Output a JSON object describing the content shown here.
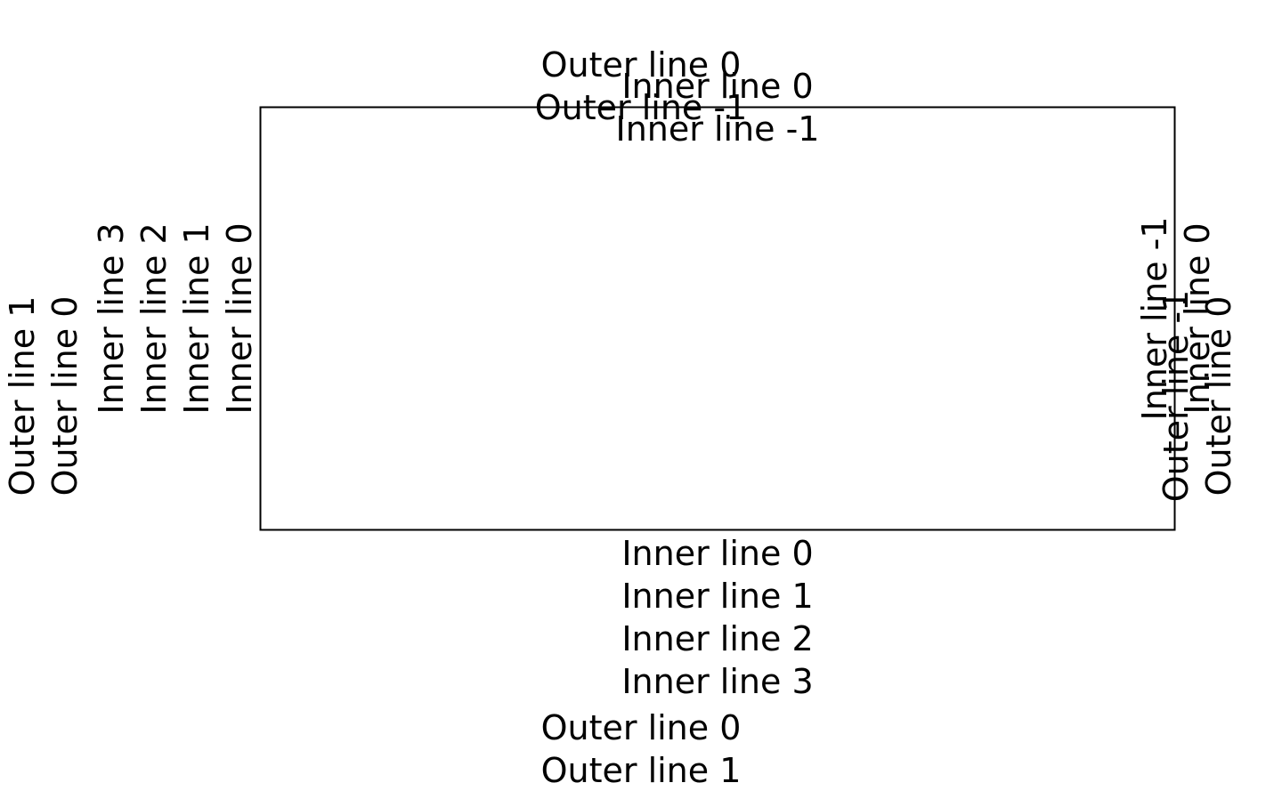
{
  "plot_box": {
    "border_color": "#000000"
  },
  "top": {
    "inner": [
      "Inner line 0",
      "Inner line -1"
    ],
    "outer": [
      "Outer line 0",
      "Outer line -1"
    ]
  },
  "bottom": {
    "inner": [
      "Inner line 0",
      "Inner line 1",
      "Inner line 2",
      "Inner line 3"
    ],
    "outer": [
      "Outer line 0",
      "Outer line 1"
    ]
  },
  "left": {
    "inner": [
      "Inner line 3",
      "Inner line 2",
      "Inner line 1",
      "Inner line 0"
    ],
    "outer": [
      "Outer line 1",
      "Outer line 0"
    ]
  },
  "right": {
    "inner": [
      "Inner line -1",
      "Inner line 0"
    ],
    "outer": [
      "Outer line -1",
      "Outer line 0"
    ]
  }
}
